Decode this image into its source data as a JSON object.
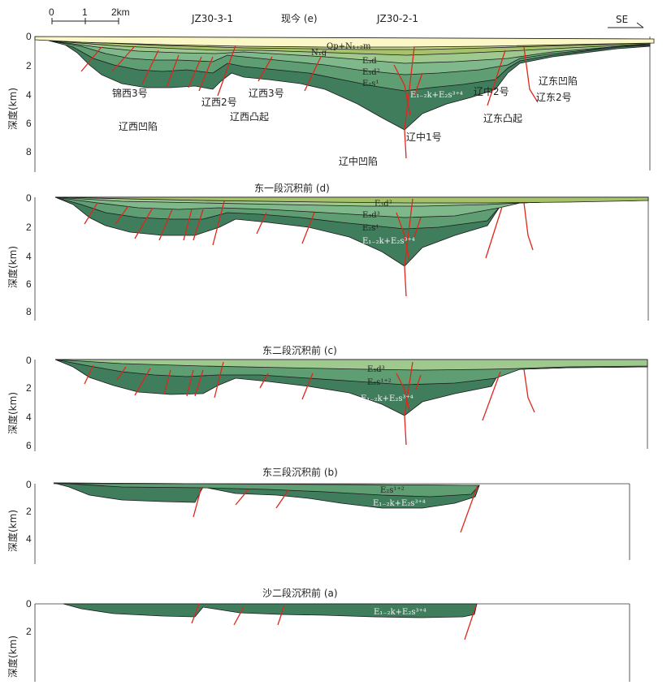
{
  "scale_bar": {
    "ticks": [
      "0",
      "1",
      "2km"
    ]
  },
  "direction_label": "SE",
  "colors": {
    "quaternary": "#fbf7c6",
    "ng": "#c6d98a",
    "e3d1": "#a7c26b",
    "e3d2": "#9fc98e",
    "e3d3": "#7fb88a",
    "es1": "#5f9e72",
    "es3": "#3f7d5c",
    "fault": "#e0261b"
  },
  "panels": [
    {
      "id": "e",
      "title": "现今 (e)",
      "wells": [
        "JZ30-3-1",
        "JZ30-2-1"
      ],
      "ylabel": "深度(km)",
      "yticks": [
        "0",
        "2",
        "4",
        "6",
        "8"
      ],
      "layer_labels": [
        "Qp+N₁₊₂m",
        "N₁g",
        "E₃d",
        "E₃d²",
        "E₂s¹",
        "E₁₋₂k+E₂s³⁺⁴"
      ],
      "structure_labels": [
        "锦西3号",
        "辽西2号",
        "辽西3号",
        "辽西凸起",
        "辽西凹陷",
        "辽中1号",
        "辽中凹陷",
        "辽中2号",
        "辽东凸起",
        "辽东凹陷",
        "辽东2号"
      ]
    },
    {
      "id": "d",
      "title": "东一段沉积前 (d)",
      "ylabel": "深度(km)",
      "yticks": [
        "0",
        "2",
        "4",
        "6",
        "8"
      ],
      "layer_labels": [
        "E₃d²",
        "E₃d³",
        "E₂s¹",
        "E₁₋₂k+E₂s³⁺⁴"
      ]
    },
    {
      "id": "c",
      "title": "东二段沉积前 (c)",
      "ylabel": "深度(km)",
      "yticks": [
        "0",
        "2",
        "4",
        "6"
      ],
      "layer_labels": [
        "E₃d³",
        "E₂s¹⁺²",
        "E₁₋₂k+E₂s³⁺⁴"
      ]
    },
    {
      "id": "b",
      "title": "东三段沉积前 (b)",
      "ylabel": "深度(km)",
      "yticks": [
        "0",
        "2",
        "4"
      ],
      "layer_labels": [
        "E₂s¹⁺²",
        "E₁₋₂k+E₂s³⁺⁴"
      ]
    },
    {
      "id": "a",
      "title": "沙二段沉积前 (a)",
      "ylabel": "深度(km)",
      "yticks": [
        "0",
        "2"
      ],
      "layer_labels": [
        "E₁₋₂k+E₂s³⁺⁴"
      ]
    }
  ]
}
